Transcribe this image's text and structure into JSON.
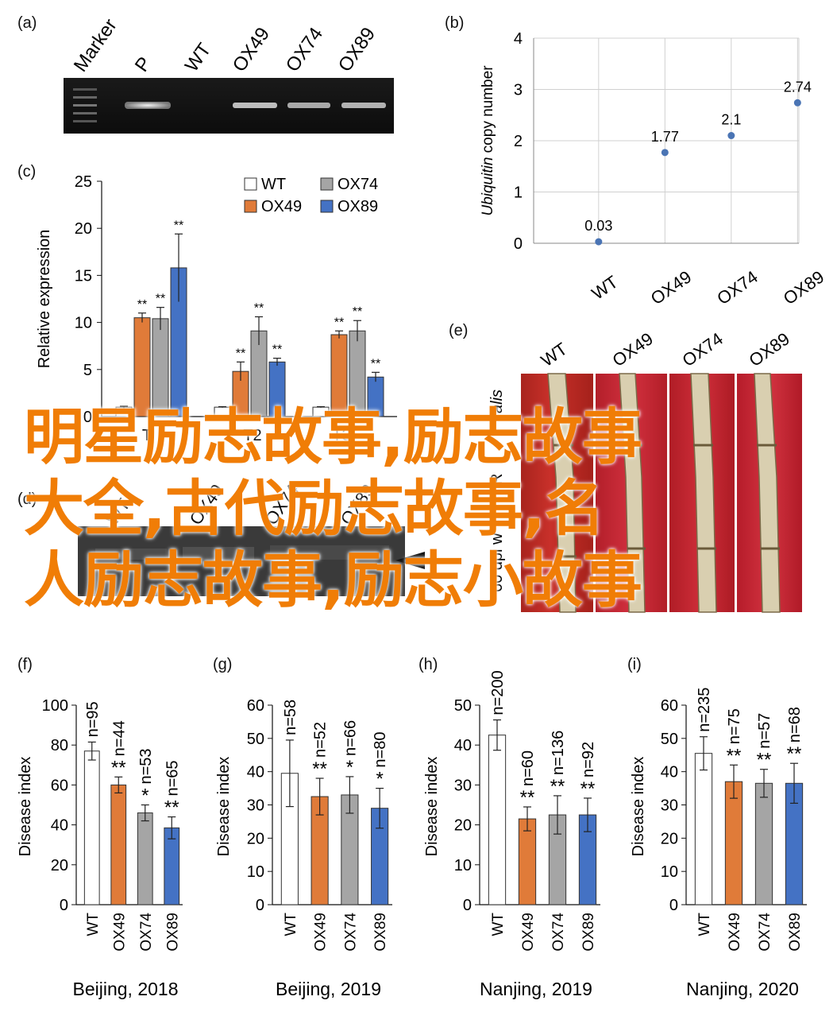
{
  "panels": {
    "a": {
      "letter": "(a)",
      "lanes": [
        "Marker",
        "P",
        "WT",
        "OX49",
        "OX74",
        "OX89"
      ]
    },
    "b": {
      "letter": "(b)"
    },
    "c": {
      "letter": "(c)"
    },
    "d": {
      "letter": "(d)",
      "lanes_visible": [
        "WT",
        "OX49",
        "OX74",
        "OX89"
      ]
    },
    "e": {
      "letter": "(e)",
      "labels": [
        "WT",
        "OX49",
        "OX74",
        "OX89"
      ],
      "side_label_fragment_1": "alis",
      "side_label_fragment_2": "60 dpi w",
      "side_label_fragment_3": "R"
    },
    "f": {
      "letter": "(f)"
    },
    "g": {
      "letter": "(g)"
    },
    "h": {
      "letter": "(h)"
    },
    "i": {
      "letter": "(i)"
    }
  },
  "overlay_text": {
    "line1": "明星励志故事,励志故事",
    "line2": "大全,古代励志故事,名",
    "line3": "人励志故事,励志小故事"
  },
  "colors": {
    "wt": "#ffffff",
    "ox49": "#e07b39",
    "ox74": "#a5a5a5",
    "ox89": "#4472c4",
    "overlay": "#f07d06",
    "scatter": "#4a74b4"
  },
  "chart_data": [
    {
      "id": "b",
      "type": "scatter",
      "ylabel_italic": "Ubiquitin",
      "ylabel_rest": " copy number",
      "categories": [
        "WT",
        "OX49",
        "OX74",
        "OX89"
      ],
      "values": [
        0.03,
        1.77,
        2.1,
        2.74
      ],
      "data_labels": [
        "0.03",
        "1.77",
        "2.1",
        "2.74"
      ],
      "ylim": [
        0,
        4
      ],
      "yticks": [
        "0",
        "1",
        "2",
        "3",
        "4"
      ],
      "grid": true
    },
    {
      "id": "c",
      "type": "bar",
      "ylabel": "Relative expression",
      "ylim": [
        0,
        25
      ],
      "yticks": [
        "0",
        "5",
        "10",
        "15",
        "20",
        "25"
      ],
      "categories": [
        "T1",
        "T2",
        "T3"
      ],
      "category_labels_visible": [
        "T",
        "T2",
        "T3"
      ],
      "legend": [
        "WT",
        "OX74",
        "OX49",
        "OX89"
      ],
      "legend_placement": "top-right",
      "series": [
        {
          "name": "WT",
          "values": [
            1.0,
            1.0,
            1.0
          ],
          "errors": [
            0.1,
            0.05,
            0.05
          ],
          "marks": [
            "",
            "",
            ""
          ]
        },
        {
          "name": "OX49",
          "values": [
            10.5,
            4.8,
            8.7
          ],
          "errors": [
            0.5,
            1.0,
            0.4
          ],
          "marks": [
            "**",
            "**",
            "**"
          ]
        },
        {
          "name": "OX74",
          "values": [
            10.4,
            9.1,
            9.1
          ],
          "errors": [
            1.2,
            1.5,
            1.1
          ],
          "marks": [
            "**",
            "**",
            "**"
          ]
        },
        {
          "name": "OX89",
          "values": [
            15.8,
            5.8,
            4.2
          ],
          "errors": [
            3.6,
            0.4,
            0.5
          ],
          "marks": [
            "**",
            "**",
            "**"
          ]
        }
      ]
    },
    {
      "id": "f",
      "type": "bar",
      "ylabel": "Disease index",
      "xlabel": "Beijing, 2018",
      "ylim": [
        0,
        100
      ],
      "yticks": [
        "0",
        "20",
        "40",
        "60",
        "80",
        "100"
      ],
      "categories": [
        "WT",
        "OX49",
        "OX74",
        "OX89"
      ],
      "values": [
        77,
        60,
        46,
        38.5
      ],
      "errors": [
        4.5,
        4,
        4,
        5.5
      ],
      "n_labels": [
        "n=95",
        "n=44",
        "n=53",
        "n=65"
      ],
      "marks": [
        "",
        "**",
        "*",
        "**"
      ]
    },
    {
      "id": "g",
      "type": "bar",
      "ylabel": "Disease index",
      "xlabel": "Beijing, 2019",
      "ylim": [
        0,
        60
      ],
      "yticks": [
        "0",
        "10",
        "20",
        "30",
        "40",
        "50",
        "60"
      ],
      "categories": [
        "WT",
        "OX49",
        "OX74",
        "OX89"
      ],
      "values": [
        39.5,
        32.5,
        33,
        29
      ],
      "errors": [
        10,
        5.5,
        5.5,
        6
      ],
      "n_labels": [
        "n=58",
        "n=52",
        "n=66",
        "n=80"
      ],
      "marks": [
        "",
        "**",
        "*",
        "*"
      ]
    },
    {
      "id": "h",
      "type": "bar",
      "ylabel": "Disease index",
      "xlabel": "Nanjing, 2019",
      "ylim": [
        0,
        50
      ],
      "yticks": [
        "0",
        "10",
        "20",
        "30",
        "40",
        "50"
      ],
      "categories": [
        "WT",
        "OX49",
        "OX74",
        "OX89"
      ],
      "values": [
        42.5,
        21.5,
        22.5,
        22.5
      ],
      "errors": [
        3.8,
        3,
        4.8,
        4.2
      ],
      "n_labels": [
        "n=200",
        "n=60",
        "n=136",
        "n=92"
      ],
      "marks": [
        "",
        "**",
        "**",
        "**"
      ]
    },
    {
      "id": "i",
      "type": "bar",
      "ylabel": "Disease index",
      "xlabel": "Nanjing, 2020",
      "ylim": [
        0,
        60
      ],
      "yticks": [
        "0",
        "10",
        "20",
        "30",
        "40",
        "50",
        "60"
      ],
      "categories": [
        "WT",
        "OX49",
        "OX74",
        "OX89"
      ],
      "values": [
        45.5,
        37,
        36.5,
        36.5
      ],
      "errors": [
        5,
        5,
        4.2,
        6
      ],
      "n_labels": [
        "n=235",
        "n=75",
        "n=57",
        "n=68"
      ],
      "marks": [
        "",
        "**",
        "**",
        "**"
      ]
    }
  ]
}
